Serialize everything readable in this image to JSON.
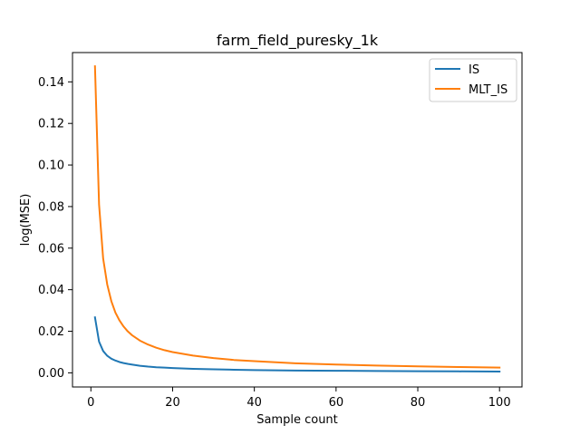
{
  "chart_data": {
    "type": "line",
    "title": "farm_field_puresky_1k",
    "xlabel": "Sample count",
    "ylabel": "log(MSE)",
    "xlim": [
      -4.5,
      105.5
    ],
    "ylim": [
      -0.0068,
      0.1541
    ],
    "xticks": [
      0,
      20,
      40,
      60,
      80,
      100
    ],
    "xtick_labels": [
      "0",
      "20",
      "40",
      "60",
      "80",
      "100"
    ],
    "yticks": [
      0.0,
      0.02,
      0.04,
      0.06,
      0.08,
      0.1,
      0.12,
      0.14
    ],
    "ytick_labels": [
      "0.00",
      "0.02",
      "0.04",
      "0.06",
      "0.08",
      "0.10",
      "0.12",
      "0.14"
    ],
    "grid": false,
    "legend_position": "top-right",
    "series": [
      {
        "name": "IS",
        "color": "#1f77b4",
        "x": [
          1,
          2,
          3,
          4,
          5,
          6,
          7,
          8,
          9,
          10,
          12,
          14,
          16,
          18,
          20,
          25,
          30,
          35,
          40,
          50,
          60,
          70,
          80,
          90,
          100
        ],
        "y": [
          0.0267,
          0.015,
          0.0105,
          0.0082,
          0.0068,
          0.0059,
          0.0052,
          0.0047,
          0.0043,
          0.004,
          0.0034,
          0.003,
          0.0027,
          0.0025,
          0.0023,
          0.0019,
          0.0017,
          0.0015,
          0.0013,
          0.0011,
          0.001,
          0.0009,
          0.0008,
          0.0007,
          0.0006
        ]
      },
      {
        "name": "MLT_IS",
        "color": "#ff7f0e",
        "x": [
          1,
          2,
          3,
          4,
          5,
          6,
          7,
          8,
          9,
          10,
          12,
          14,
          16,
          18,
          20,
          25,
          30,
          35,
          40,
          50,
          60,
          70,
          80,
          90,
          100
        ],
        "y": [
          0.1475,
          0.081,
          0.055,
          0.0425,
          0.0345,
          0.029,
          0.0252,
          0.0223,
          0.02,
          0.0182,
          0.0155,
          0.0136,
          0.0121,
          0.0109,
          0.01,
          0.0083,
          0.0071,
          0.0062,
          0.0056,
          0.0046,
          0.004,
          0.0035,
          0.0031,
          0.0028,
          0.0025
        ]
      }
    ]
  }
}
